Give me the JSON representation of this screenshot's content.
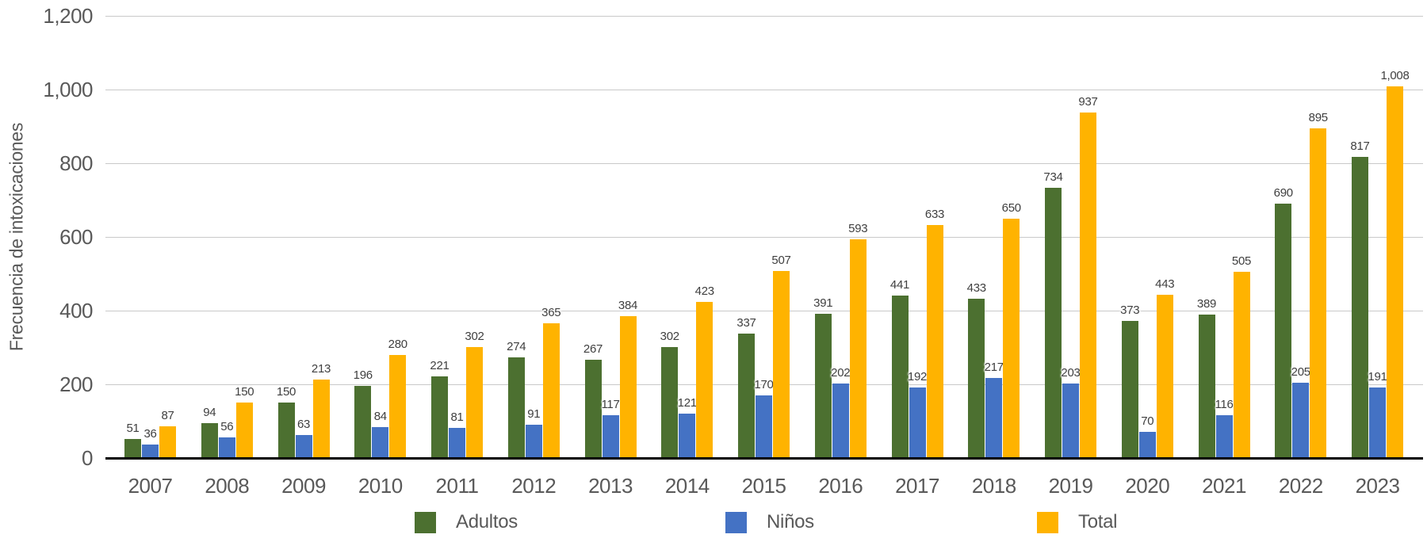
{
  "chart_data": {
    "type": "bar",
    "title": "",
    "ylabel": "Frecuencia de intoxicaciones",
    "xlabel": "",
    "categories": [
      "2007",
      "2008",
      "2009",
      "2010",
      "2011",
      "2012",
      "2013",
      "2014",
      "2015",
      "2016",
      "2017",
      "2018",
      "2019",
      "2020",
      "2021",
      "2022",
      "2023"
    ],
    "series": [
      {
        "name": "Adultos",
        "color": "#4c7030",
        "values": [
          51,
          94,
          150,
          196,
          221,
          274,
          267,
          302,
          337,
          391,
          441,
          433,
          734,
          373,
          389,
          690,
          817
        ]
      },
      {
        "name": "Niños",
        "color": "#4472c4",
        "values": [
          36,
          56,
          63,
          84,
          81,
          91,
          117,
          121,
          170,
          202,
          192,
          217,
          203,
          70,
          116,
          205,
          191
        ]
      },
      {
        "name": "Total",
        "color": "#ffb300",
        "values": [
          87,
          150,
          213,
          280,
          302,
          365,
          384,
          423,
          507,
          593,
          633,
          650,
          937,
          443,
          505,
          895,
          1008
        ]
      }
    ],
    "ylim": [
      0,
      1200
    ],
    "yticks": [
      0,
      200,
      400,
      600,
      800,
      1000,
      1200
    ],
    "ytick_labels": [
      "0",
      "200",
      "400",
      "600",
      "800",
      "1,000",
      "1,200"
    ],
    "grid": "horizontal",
    "gridline_color": "#c9c9c9",
    "axis_line_color": "#000000",
    "data_labels": true,
    "legend_position": "bottom"
  }
}
